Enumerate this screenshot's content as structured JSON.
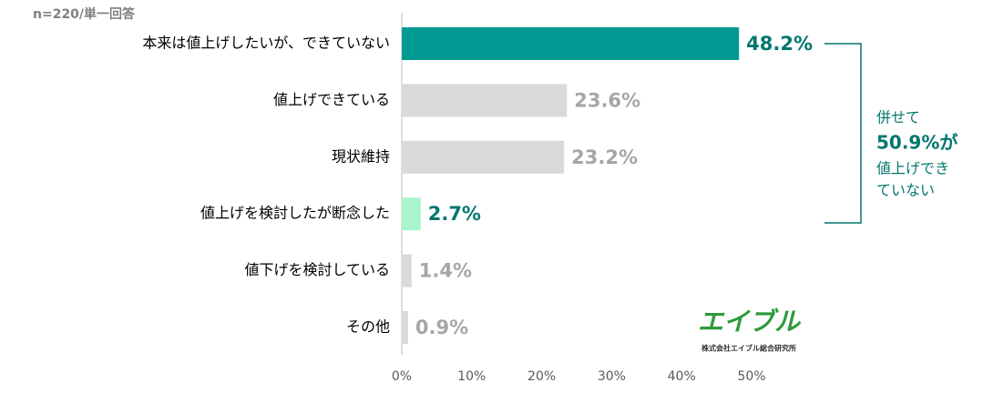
{
  "chart_data": {
    "type": "bar",
    "orientation": "horizontal",
    "subtitle": "n=220/単一回答",
    "categories": [
      "本来は値上げしたいが、できていない",
      "値上げできている",
      "現状維持",
      "値上げを検討したが断念した",
      "値下げを検討している",
      "その他"
    ],
    "values": [
      48.2,
      23.6,
      23.2,
      2.7,
      1.4,
      0.9
    ],
    "value_labels": [
      "48.2%",
      "23.6%",
      "23.2%",
      "2.7%",
      "1.4%",
      "0.9%"
    ],
    "colors": [
      "#009a93",
      "#d9d9d9",
      "#d9d9d9",
      "#a8f5cb",
      "#d9d9d9",
      "#d9d9d9"
    ],
    "label_colors": [
      "#00776f",
      "#a6a6a6",
      "#a6a6a6",
      "#00776f",
      "#a6a6a6",
      "#a6a6a6"
    ],
    "xlim": [
      0,
      50
    ],
    "xticks": [
      {
        "value": 0,
        "label": "0%"
      },
      {
        "value": 10,
        "label": "10%"
      },
      {
        "value": 20,
        "label": "20%"
      },
      {
        "value": 30,
        "label": "30%"
      },
      {
        "value": 40,
        "label": "40%"
      },
      {
        "value": 50,
        "label": "50%"
      }
    ],
    "annotation": [
      "併せて",
      "50.9%が",
      "値上げでき",
      "ていない"
    ],
    "logo": [
      "エイブル",
      "株式会社エイブル総合研究所"
    ]
  }
}
